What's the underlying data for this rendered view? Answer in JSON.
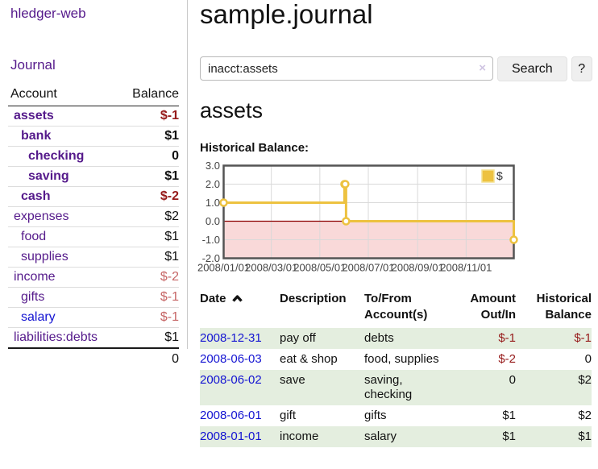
{
  "app": {
    "title": "hledger-web",
    "nav_journal": "Journal"
  },
  "sidebar": {
    "header": {
      "account": "Account",
      "balance": "Balance"
    },
    "accounts": [
      {
        "name": "assets",
        "indent": 0,
        "bold": true,
        "balance": "$-1",
        "balance_tone": "negative"
      },
      {
        "name": "bank",
        "indent": 1,
        "bold": true,
        "balance": "$1",
        "balance_tone": "normal"
      },
      {
        "name": "checking",
        "indent": 2,
        "bold": true,
        "balance": "0",
        "balance_tone": "normal"
      },
      {
        "name": "saving",
        "indent": 2,
        "bold": true,
        "balance": "$1",
        "balance_tone": "normal"
      },
      {
        "name": "cash",
        "indent": 1,
        "bold": true,
        "balance": "$-2",
        "balance_tone": "negative"
      },
      {
        "name": "expenses",
        "indent": 0,
        "bold": false,
        "balance": "$2",
        "balance_tone": "normal"
      },
      {
        "name": "food",
        "indent": 1,
        "bold": false,
        "balance": "$1",
        "balance_tone": "normal"
      },
      {
        "name": "supplies",
        "indent": 1,
        "bold": false,
        "balance": "$1",
        "balance_tone": "normal"
      },
      {
        "name": "income",
        "indent": 0,
        "bold": false,
        "balance": "$-2",
        "balance_tone": "soft-negative"
      },
      {
        "name": "gifts",
        "indent": 1,
        "bold": false,
        "balance": "$-1",
        "balance_tone": "soft-negative"
      },
      {
        "name": "salary",
        "indent": 1,
        "bold": false,
        "balance": "$-1",
        "balance_tone": "soft-negative",
        "link_color": "blue"
      },
      {
        "name": "liabilities:debts",
        "indent": 0,
        "bold": false,
        "balance": "$1",
        "balance_tone": "normal"
      }
    ],
    "total": "0"
  },
  "header": {
    "title": "sample.journal"
  },
  "search": {
    "value": "inacct:assets",
    "clear_icon": "×",
    "button_label": "Search",
    "help_label": "?"
  },
  "main": {
    "account_title": "assets",
    "chart_title": "Historical Balance:"
  },
  "chart_data": {
    "type": "line",
    "step": true,
    "title": "Historical Balance:",
    "legend": [
      {
        "label": "$",
        "color": "#edc240"
      }
    ],
    "legend_position": "top-right",
    "x_range": [
      "2008-01-01",
      "2008-12-31"
    ],
    "ylim": [
      -2.0,
      3.0
    ],
    "yticks": [
      "3.0",
      "2.0",
      "1.0",
      "0.0",
      "-1.0",
      "-2.0"
    ],
    "xticks": [
      "2008/01/01",
      "2008/03/01",
      "2008/05/01",
      "2008/07/01",
      "2008/09/01",
      "2008/11/01"
    ],
    "series": [
      {
        "name": "$",
        "points": [
          [
            "2008-01-01",
            1
          ],
          [
            "2008-06-01",
            2
          ],
          [
            "2008-06-02",
            2
          ],
          [
            "2008-06-03",
            0
          ],
          [
            "2008-12-31",
            -1
          ]
        ]
      }
    ],
    "grid": true,
    "series_color": "#edc240",
    "negative_region_fill": "#f9d9d9",
    "zero_line_color": "#8b0000"
  },
  "register": {
    "columns": [
      "Date",
      "Description",
      "To/From Account(s)",
      "Amount Out/In",
      "Historical Balance"
    ],
    "sort_column": "Date",
    "sort_direction": "ascending",
    "rows": [
      {
        "date": "2008-12-31",
        "description": "pay off",
        "accounts": "debts",
        "amount": "$-1",
        "amount_negative": true,
        "balance": "$-1",
        "balance_negative": true
      },
      {
        "date": "2008-06-03",
        "description": "eat & shop",
        "accounts": "food, supplies",
        "amount": "$-2",
        "amount_negative": true,
        "balance": "0",
        "balance_negative": false
      },
      {
        "date": "2008-06-02",
        "description": "save",
        "accounts": "saving, checking",
        "amount": "0",
        "amount_negative": false,
        "balance": "$2",
        "balance_negative": false
      },
      {
        "date": "2008-06-01",
        "description": "gift",
        "accounts": "gifts",
        "amount": "$1",
        "amount_negative": false,
        "balance": "$2",
        "balance_negative": false
      },
      {
        "date": "2008-01-01",
        "description": "income",
        "accounts": "salary",
        "amount": "$1",
        "amount_negative": false,
        "balance": "$1",
        "balance_negative": false
      }
    ]
  },
  "colors": {
    "link_purple": "#551a8b",
    "link_blue": "#1414d2",
    "negative_strong": "#961a1a",
    "negative_soft": "#c66666",
    "row_green": "#e4eedf",
    "chart_gold": "#edc240",
    "chart_negative_fill": "#f9d9d9",
    "chart_zero_line": "#8b0000"
  }
}
